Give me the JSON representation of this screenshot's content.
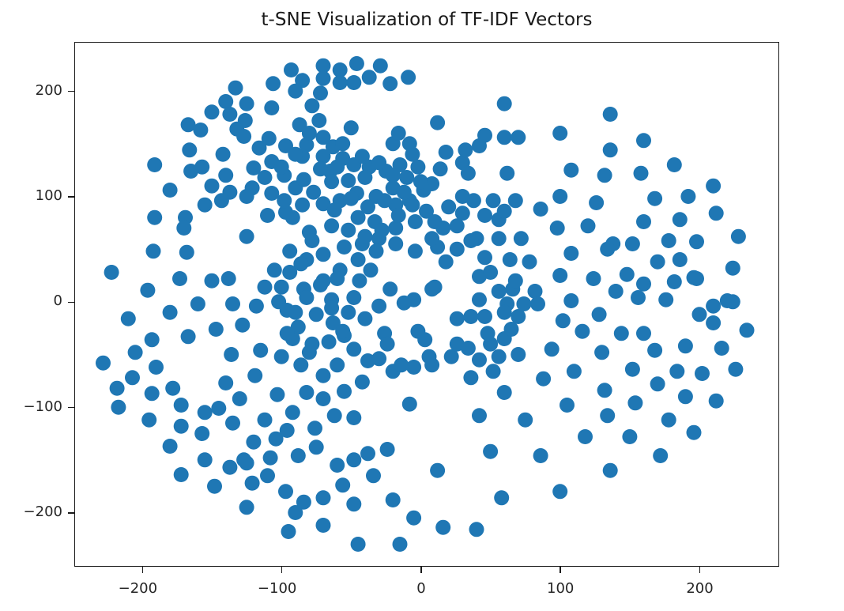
{
  "chart_data": {
    "type": "scatter",
    "title": "t-SNE Visualization of TF-IDF Vectors",
    "xlabel": "",
    "ylabel": "",
    "xlim": [
      -249,
      257
    ],
    "ylim": [
      -251,
      247
    ],
    "grid": false,
    "legend": null,
    "marker_color": "#1f77b4",
    "x_ticks": [
      -200,
      -100,
      0,
      100,
      200
    ],
    "y_ticks": [
      -200,
      -100,
      0,
      100,
      200
    ],
    "x_tick_labels": [
      "−200",
      "−100",
      "0",
      "100",
      "200"
    ],
    "y_tick_labels": [
      "−200",
      "−100",
      "0",
      "100",
      "200"
    ],
    "points": [
      [
        -46,
        226
      ],
      [
        -70,
        224
      ],
      [
        -29,
        224
      ],
      [
        -93,
        220
      ],
      [
        -58,
        220
      ],
      [
        -70,
        212
      ],
      [
        -37,
        213
      ],
      [
        -9,
        213
      ],
      [
        -85,
        210
      ],
      [
        -106,
        207
      ],
      [
        -133,
        203
      ],
      [
        -48,
        208
      ],
      [
        -58,
        208
      ],
      [
        -22,
        207
      ],
      [
        -90,
        200
      ],
      [
        -72,
        198
      ],
      [
        -78,
        186
      ],
      [
        -107,
        184
      ],
      [
        -140,
        190
      ],
      [
        -125,
        188
      ],
      [
        -150,
        180
      ],
      [
        -137,
        178
      ],
      [
        -126,
        172
      ],
      [
        -73,
        172
      ],
      [
        -132,
        164
      ],
      [
        -167,
        168
      ],
      [
        -158,
        163
      ],
      [
        -50,
        165
      ],
      [
        -87,
        168
      ],
      [
        -127,
        157
      ],
      [
        -109,
        155
      ],
      [
        -116,
        146
      ],
      [
        -97,
        148
      ],
      [
        -82,
        149
      ],
      [
        -63,
        147
      ],
      [
        -85,
        138
      ],
      [
        -70,
        138
      ],
      [
        -56,
        136
      ],
      [
        -48,
        130
      ],
      [
        -37,
        128
      ],
      [
        -65,
        124
      ],
      [
        -98,
        120
      ],
      [
        -107,
        133
      ],
      [
        -120,
        127
      ],
      [
        -142,
        140
      ],
      [
        -166,
        144
      ],
      [
        -140,
        120
      ],
      [
        -157,
        128
      ],
      [
        -191,
        130
      ],
      [
        -165,
        124
      ],
      [
        -150,
        110
      ],
      [
        -137,
        104
      ],
      [
        -121,
        108
      ],
      [
        -107,
        103
      ],
      [
        -90,
        108
      ],
      [
        -77,
        104
      ],
      [
        -64,
        114
      ],
      [
        -52,
        115
      ],
      [
        -40,
        118
      ],
      [
        -25,
        124
      ],
      [
        -15,
        130
      ],
      [
        -2,
        128
      ],
      [
        -10,
        118
      ],
      [
        -20,
        108
      ],
      [
        -32,
        100
      ],
      [
        -46,
        103
      ],
      [
        -58,
        96
      ],
      [
        -70,
        93
      ],
      [
        -85,
        92
      ],
      [
        -97,
        85
      ],
      [
        -110,
        82
      ],
      [
        -125,
        100
      ],
      [
        -143,
        96
      ],
      [
        -180,
        106
      ],
      [
        -155,
        92
      ],
      [
        -169,
        80
      ],
      [
        -191,
        80
      ],
      [
        -170,
        70
      ],
      [
        -192,
        48
      ],
      [
        -168,
        47
      ],
      [
        -125,
        62
      ],
      [
        -92,
        80
      ],
      [
        -80,
        66
      ],
      [
        -62,
        87
      ],
      [
        -45,
        80
      ],
      [
        -33,
        76
      ],
      [
        -18,
        92
      ],
      [
        -8,
        96
      ],
      [
        4,
        86
      ],
      [
        10,
        76
      ],
      [
        -18,
        70
      ],
      [
        -30,
        60
      ],
      [
        -42,
        55
      ],
      [
        -55,
        52
      ],
      [
        -70,
        45
      ],
      [
        -82,
        40
      ],
      [
        -94,
        48
      ],
      [
        -105,
        30
      ],
      [
        -112,
        14
      ],
      [
        -102,
        0
      ],
      [
        -118,
        -4
      ],
      [
        -96,
        -8
      ],
      [
        -84,
        12
      ],
      [
        -70,
        20
      ],
      [
        -58,
        30
      ],
      [
        -45,
        40
      ],
      [
        -32,
        48
      ],
      [
        -18,
        55
      ],
      [
        -4,
        48
      ],
      [
        -48,
        4
      ],
      [
        -64,
        2
      ],
      [
        -75,
        -12
      ],
      [
        -88,
        -24
      ],
      [
        -92,
        -35
      ],
      [
        -78,
        -40
      ],
      [
        -63,
        -20
      ],
      [
        -55,
        -32
      ],
      [
        -48,
        -45
      ],
      [
        -38,
        -56
      ],
      [
        -60,
        -60
      ],
      [
        -70,
        -70
      ],
      [
        -82,
        -86
      ],
      [
        -70,
        -92
      ],
      [
        -55,
        -85
      ],
      [
        -42,
        -76
      ],
      [
        -48,
        -110
      ],
      [
        -62,
        -108
      ],
      [
        -76,
        -120
      ],
      [
        -92,
        -105
      ],
      [
        -96,
        -122
      ],
      [
        -88,
        -146
      ],
      [
        -75,
        -138
      ],
      [
        -60,
        -155
      ],
      [
        -48,
        -150
      ],
      [
        -56,
        -174
      ],
      [
        -70,
        -186
      ],
      [
        -84,
        -190
      ],
      [
        -97,
        -180
      ],
      [
        -110,
        -165
      ],
      [
        -121,
        -172
      ],
      [
        -125,
        -153
      ],
      [
        -108,
        -148
      ],
      [
        -104,
        -130
      ],
      [
        -120,
        -133
      ],
      [
        -112,
        -112
      ],
      [
        -103,
        -88
      ],
      [
        -119,
        -70
      ],
      [
        -115,
        -46
      ],
      [
        -128,
        -22
      ],
      [
        -135,
        -2
      ],
      [
        -138,
        22
      ],
      [
        -150,
        20
      ],
      [
        -160,
        -2
      ],
      [
        -147,
        -26
      ],
      [
        -167,
        -33
      ],
      [
        -180,
        -10
      ],
      [
        -193,
        -36
      ],
      [
        -210,
        -16
      ],
      [
        -222,
        28
      ],
      [
        -196,
        11
      ],
      [
        -173,
        22
      ],
      [
        -205,
        -48
      ],
      [
        -228,
        -58
      ],
      [
        -218,
        -82
      ],
      [
        -207,
        -72
      ],
      [
        -190,
        -62
      ],
      [
        -178,
        -82
      ],
      [
        -193,
        -87
      ],
      [
        -195,
        -112
      ],
      [
        -217,
        -100
      ],
      [
        -172,
        -98
      ],
      [
        -172,
        -118
      ],
      [
        -180,
        -137
      ],
      [
        -172,
        -164
      ],
      [
        -155,
        -105
      ],
      [
        -157,
        -125
      ],
      [
        -155,
        -150
      ],
      [
        -145,
        -101
      ],
      [
        -140,
        -77
      ],
      [
        -136,
        -50
      ],
      [
        -130,
        -92
      ],
      [
        -135,
        -115
      ],
      [
        -137,
        -157
      ],
      [
        -127,
        -150
      ],
      [
        -148,
        -175
      ],
      [
        -125,
        -195
      ],
      [
        -95,
        -218
      ],
      [
        -90,
        -200
      ],
      [
        -70,
        -212
      ],
      [
        -48,
        -192
      ],
      [
        -45,
        -230
      ],
      [
        -34,
        -165
      ],
      [
        -38,
        -144
      ],
      [
        -24,
        -140
      ],
      [
        -20,
        -188
      ],
      [
        -15,
        -230
      ],
      [
        -5,
        -205
      ],
      [
        -20,
        -66
      ],
      [
        -5,
        -62
      ],
      [
        -30,
        -54
      ],
      [
        -26,
        -30
      ],
      [
        -8,
        -97
      ],
      [
        -5,
        2
      ],
      [
        -12,
        -1
      ],
      [
        3,
        -36
      ],
      [
        8,
        -60
      ],
      [
        12,
        -160
      ],
      [
        16,
        -214
      ],
      [
        22,
        -52
      ],
      [
        26,
        -40
      ],
      [
        34,
        -44
      ],
      [
        36,
        -72
      ],
      [
        42,
        -108
      ],
      [
        40,
        -216
      ],
      [
        50,
        -142
      ],
      [
        58,
        -186
      ],
      [
        60,
        -86
      ],
      [
        42,
        -55
      ],
      [
        56,
        -52
      ],
      [
        50,
        -40
      ],
      [
        60,
        -35
      ],
      [
        65,
        -26
      ],
      [
        70,
        -50
      ],
      [
        75,
        -112
      ],
      [
        86,
        -146
      ],
      [
        88,
        -73
      ],
      [
        100,
        -180
      ],
      [
        105,
        -98
      ],
      [
        110,
        -66
      ],
      [
        116,
        -28
      ],
      [
        118,
        -128
      ],
      [
        130,
        -48
      ],
      [
        132,
        -84
      ],
      [
        134,
        -108
      ],
      [
        136,
        -160
      ],
      [
        150,
        -128
      ],
      [
        152,
        -64
      ],
      [
        154,
        -96
      ],
      [
        160,
        -30
      ],
      [
        168,
        -46
      ],
      [
        170,
        -78
      ],
      [
        172,
        -146
      ],
      [
        178,
        -112
      ],
      [
        184,
        -66
      ],
      [
        190,
        -42
      ],
      [
        190,
        -90
      ],
      [
        196,
        -124
      ],
      [
        200,
        -12
      ],
      [
        202,
        -68
      ],
      [
        210,
        -20
      ],
      [
        212,
        -94
      ],
      [
        216,
        -44
      ],
      [
        226,
        -64
      ],
      [
        234,
        -27
      ],
      [
        220,
        1
      ],
      [
        196,
        23
      ],
      [
        186,
        40
      ],
      [
        170,
        38
      ],
      [
        160,
        17
      ],
      [
        148,
        26
      ],
      [
        140,
        10
      ],
      [
        138,
        55
      ],
      [
        152,
        55
      ],
      [
        124,
        22
      ],
      [
        128,
        -12
      ],
      [
        102,
        -18
      ],
      [
        94,
        -45
      ],
      [
        108,
        1
      ],
      [
        100,
        25
      ],
      [
        82,
        10
      ],
      [
        84,
        -2
      ],
      [
        78,
        38
      ],
      [
        72,
        60
      ],
      [
        86,
        88
      ],
      [
        98,
        70
      ],
      [
        100,
        100
      ],
      [
        108,
        46
      ],
      [
        120,
        72
      ],
      [
        134,
        50
      ],
      [
        132,
        120
      ],
      [
        126,
        94
      ],
      [
        136,
        144
      ],
      [
        136,
        178
      ],
      [
        160,
        153
      ],
      [
        158,
        122
      ],
      [
        160,
        76
      ],
      [
        168,
        98
      ],
      [
        178,
        58
      ],
      [
        182,
        130
      ],
      [
        186,
        78
      ],
      [
        192,
        100
      ],
      [
        198,
        57
      ],
      [
        198,
        22
      ],
      [
        210,
        110
      ],
      [
        212,
        84
      ],
      [
        224,
        32
      ],
      [
        224,
        0
      ],
      [
        228,
        62
      ],
      [
        210,
        -4
      ],
      [
        176,
        2
      ],
      [
        156,
        4
      ],
      [
        144,
        -30
      ],
      [
        182,
        19
      ],
      [
        100,
        160
      ],
      [
        108,
        125
      ],
      [
        60,
        188
      ],
      [
        60,
        156
      ],
      [
        70,
        156
      ],
      [
        62,
        122
      ],
      [
        46,
        82
      ],
      [
        38,
        96
      ],
      [
        40,
        60
      ],
      [
        42,
        24
      ],
      [
        46,
        -14
      ],
      [
        48,
        -30
      ],
      [
        62,
        -2
      ],
      [
        66,
        12
      ],
      [
        64,
        40
      ],
      [
        56,
        60
      ],
      [
        56,
        78
      ],
      [
        52,
        96
      ],
      [
        60,
        86
      ],
      [
        68,
        96
      ],
      [
        30,
        84
      ],
      [
        36,
        58
      ],
      [
        26,
        50
      ],
      [
        18,
        38
      ],
      [
        12,
        52
      ],
      [
        8,
        60
      ],
      [
        16,
        70
      ],
      [
        26,
        72
      ],
      [
        30,
        132
      ],
      [
        34,
        122
      ],
      [
        42,
        148
      ],
      [
        46,
        158
      ],
      [
        32,
        144
      ],
      [
        18,
        142
      ],
      [
        14,
        126
      ],
      [
        8,
        112
      ],
      [
        2,
        106
      ],
      [
        -6,
        140
      ],
      [
        -8,
        150
      ],
      [
        -20,
        150
      ],
      [
        -16,
        160
      ],
      [
        12,
        170
      ],
      [
        30,
        100
      ],
      [
        20,
        90
      ],
      [
        10,
        14
      ],
      [
        8,
        12
      ],
      [
        26,
        -16
      ],
      [
        36,
        -14
      ],
      [
        42,
        2
      ],
      [
        56,
        10
      ],
      [
        60,
        -10
      ],
      [
        70,
        -14
      ],
      [
        74,
        -2
      ],
      [
        68,
        20
      ],
      [
        50,
        28
      ],
      [
        46,
        42
      ],
      [
        52,
        -66
      ],
      [
        6,
        -52
      ],
      [
        -2,
        -28
      ],
      [
        -14,
        -60
      ],
      [
        -24,
        -40
      ],
      [
        -56,
        -28
      ],
      [
        -66,
        -38
      ],
      [
        -80,
        -48
      ],
      [
        -86,
        -60
      ],
      [
        -100,
        -52
      ],
      [
        -96,
        -30
      ],
      [
        -90,
        -10
      ],
      [
        -82,
        4
      ],
      [
        -72,
        16
      ],
      [
        -60,
        22
      ],
      [
        -44,
        20
      ],
      [
        -36,
        30
      ],
      [
        -22,
        12
      ],
      [
        -30,
        -4
      ],
      [
        -40,
        -16
      ],
      [
        -52,
        -10
      ],
      [
        -64,
        -6
      ],
      [
        -100,
        14
      ],
      [
        -94,
        28
      ],
      [
        -86,
        36
      ],
      [
        -78,
        58
      ],
      [
        -64,
        72
      ],
      [
        -52,
        68
      ],
      [
        -40,
        62
      ],
      [
        -28,
        68
      ],
      [
        -16,
        82
      ],
      [
        -4,
        76
      ],
      [
        -20,
        120
      ],
      [
        -30,
        132
      ],
      [
        -42,
        138
      ],
      [
        -56,
        150
      ],
      [
        -70,
        156
      ],
      [
        -80,
        160
      ],
      [
        -90,
        140
      ],
      [
        -100,
        128
      ],
      [
        -112,
        118
      ],
      [
        -98,
        96
      ],
      [
        -84,
        116
      ],
      [
        -72,
        126
      ],
      [
        -60,
        128
      ],
      [
        -50,
        98
      ],
      [
        -38,
        90
      ],
      [
        -26,
        96
      ],
      [
        -12,
        104
      ],
      [
        0,
        114
      ],
      [
        -6,
        92
      ]
    ]
  }
}
